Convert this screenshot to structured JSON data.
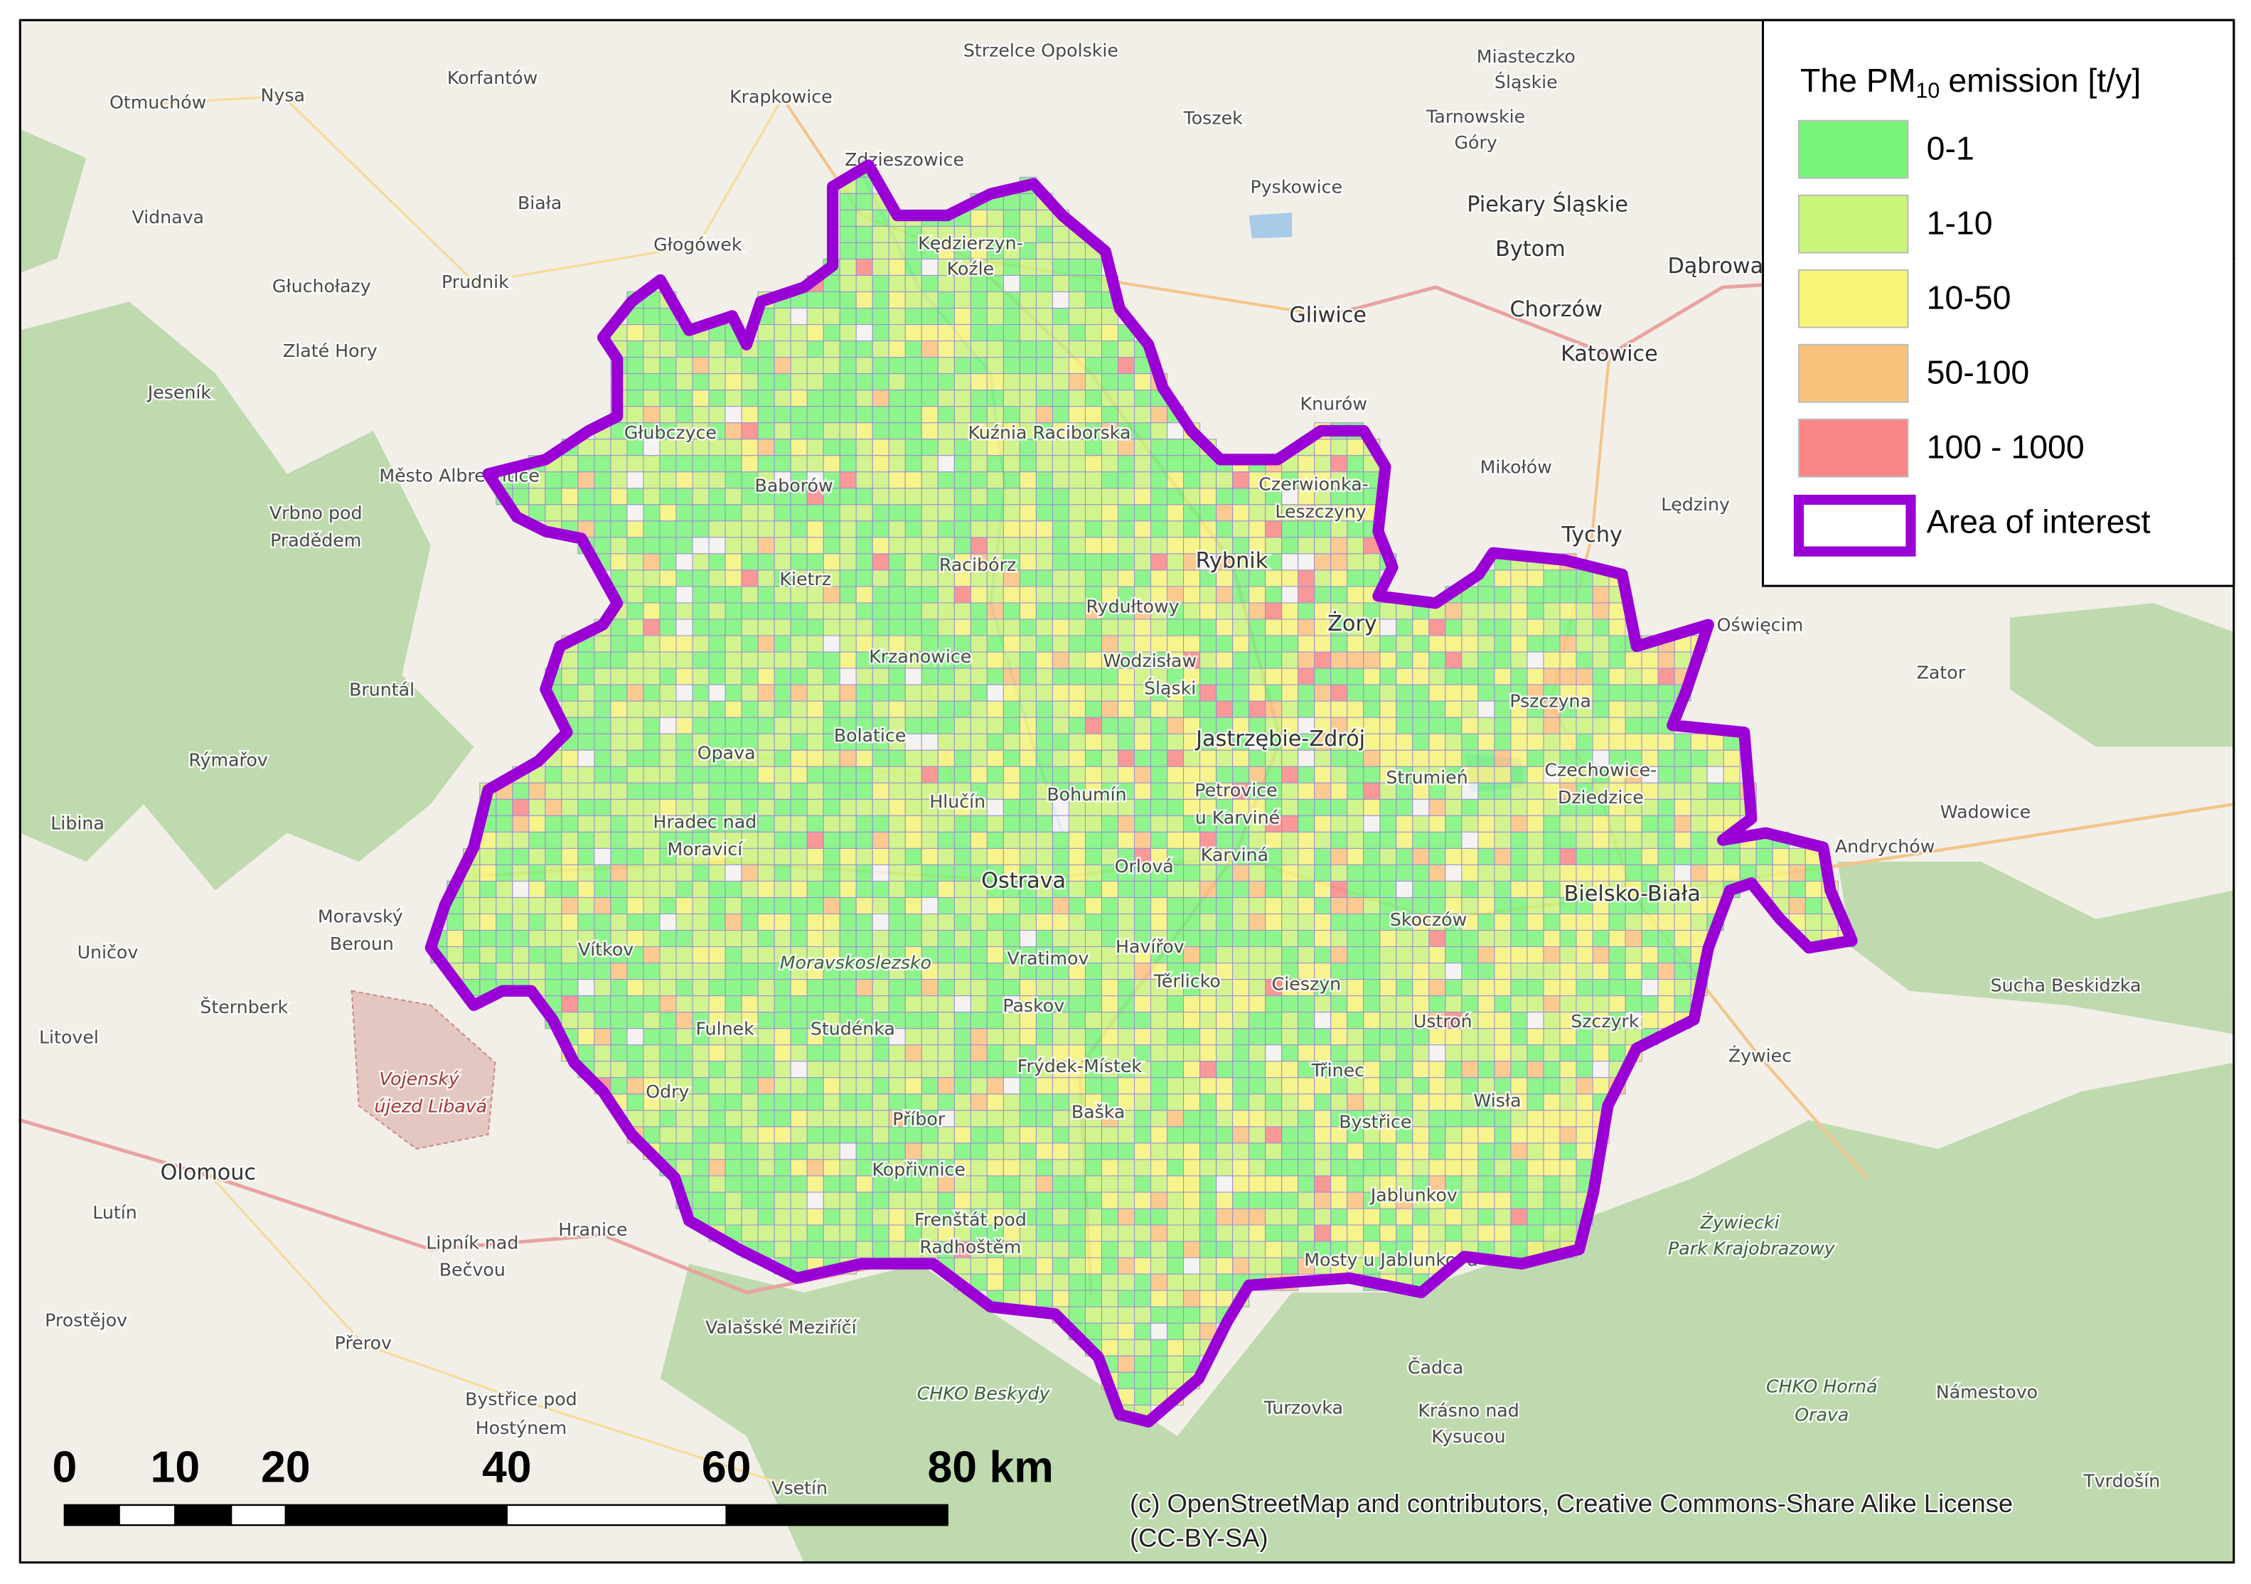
{
  "legend": {
    "title": {
      "prefix": "The PM",
      "subscript": "10",
      "suffix": "emission [t/y]"
    },
    "items": [
      {
        "label": "0-1",
        "color": "#78f578"
      },
      {
        "label": "1-10",
        "color": "#c9f57a"
      },
      {
        "label": "10-50",
        "color": "#f7f578"
      },
      {
        "label": "50-100",
        "color": "#fbc27e"
      },
      {
        "label": "100 - 1000",
        "color": "#f98585"
      },
      {
        "label": "Area of interest",
        "color": "#9a00d6",
        "outline": true
      }
    ]
  },
  "scale_bar": {
    "labels": [
      "0",
      "10",
      "20",
      "40",
      "60",
      "80 km"
    ]
  },
  "attribution": [
    "(c) OpenStreetMap and contributors, Creative Commons-Share Alike License",
    "(CC-BY-SA)"
  ],
  "places": [
    "Korfantów",
    "Strzelce Opolskie",
    "Miasteczko",
    "Śląskie",
    "Otmuchów",
    "Nysa",
    "Krapkowice",
    "Toszek",
    "Tarnowskie",
    "Góry",
    "Zdzieszowice",
    "Pyskowice",
    "Piekary Śląskie",
    "Vidnava",
    "Biała",
    "Głogówek",
    "Bytom",
    "Dąbrowa",
    "Kędzierzyn-",
    "Koźle",
    "Głuchołazy",
    "Prudnik",
    "Gliwice",
    "Chorzów",
    "Katowice",
    "Zlaté Hory",
    "Jeseník",
    "Knurów",
    "Kuźnia Raciborska",
    "Głubczyce",
    "Mikołów",
    "Město Albrechtice",
    "Baborów",
    "Czerwionka-",
    "Leszczyny",
    "Lędziny",
    "Vrbno pod",
    "Pradědem",
    "Tychy",
    "Rybnik",
    "Racibórz",
    "Kietrz",
    "Rydułtowy",
    "Żory",
    "Oświęcim",
    "Krzanowice",
    "Wodzisław",
    "Śląski",
    "Zator",
    "Bruntál",
    "Pszczyna",
    "Bolatice",
    "Jastrzębie-Zdrój",
    "Rýmařov",
    "Opava",
    "Strumień",
    "Czechowice-",
    "Dziedzice",
    "Bohumín",
    "Petrovice",
    "u Karviné",
    "Hlučín",
    "Wadowice",
    "Libina",
    "Hradec nad",
    "Moravicí",
    "Andrychów",
    "Karviná",
    "Orlová",
    "Ostrava",
    "Bielsko-Biała",
    "Moravský",
    "Beroun",
    "Skoczów",
    "Vítkov",
    "Uničov",
    "Havířov",
    "Vratimov",
    "Moravskoslezsko",
    "Těrlicko",
    "Cieszyn",
    "Sucha Beskidzka",
    "Šternberk",
    "Paskov",
    "Fulnek",
    "Studénka",
    "Ustroń",
    "Szczyrk",
    "Litovel",
    "Frýdek-Místek",
    "Třinec",
    "Żywiec",
    "Vojenský",
    "újezd Libavá",
    "Odry",
    "Wisła",
    "Příbor",
    "Baška",
    "Bystřice",
    "Olomouc",
    "Kopřivnice",
    "Jablunkov",
    "Lutín",
    "Frenštát pod",
    "Radhoštěm",
    "Żywiecki",
    "Park Krajobrazowy",
    "Lipník nad",
    "Bečvou",
    "Hranice",
    "Mosty u Jablunkova",
    "Prostějov",
    "Valašské Meziříčí",
    "Přerov",
    "Čadca",
    "CHKO Beskydy",
    "CHKO Horná",
    "Orava",
    "Turzovka",
    "Krásno nad",
    "Kysucou",
    "Námestovo",
    "Bystřice pod",
    "Hostýnem",
    "Vsetín",
    "Tvrdošín"
  ]
}
